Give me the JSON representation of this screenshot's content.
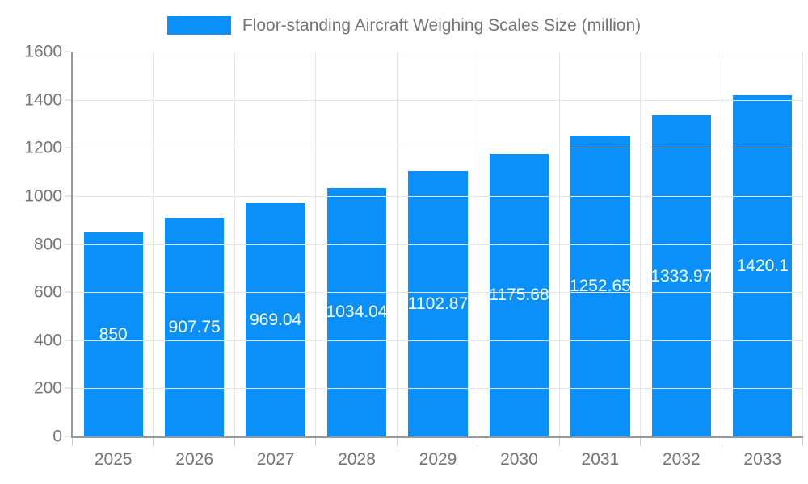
{
  "chart_data": {
    "type": "bar",
    "title": "Floor-standing Aircraft Weighing Scales Size (million)",
    "legend": [
      {
        "label": "Floor-standing Aircraft Weighing Scales Size (million)"
      }
    ],
    "legend_position": "top",
    "categories": [
      "2025",
      "2026",
      "2027",
      "2028",
      "2029",
      "2030",
      "2031",
      "2032",
      "2033"
    ],
    "series": [
      {
        "name": "Floor-standing Aircraft Weighing Scales Size (million)",
        "values": [
          850,
          907.75,
          969.04,
          1034.04,
          1102.87,
          1175.68,
          1252.65,
          1333.97,
          1420.1
        ]
      }
    ],
    "bar_labels": [
      "850",
      "907.75",
      "969.04",
      "1034.04",
      "1102.87",
      "1175.68",
      "1252.65",
      "1333.97",
      "1420.1"
    ],
    "xlabel": "",
    "ylabel": "",
    "ylim": [
      0,
      1600
    ],
    "y_ticks": [
      0,
      200,
      400,
      600,
      800,
      1000,
      1200,
      1400,
      1600
    ],
    "grid": true,
    "colors": {
      "bar": "#0a90f8",
      "bar_label": "#ffffff",
      "axis_label": "#757575",
      "legend_text": "#757575",
      "grid_line": "#e5e5e5",
      "tick_line": "#cccccc",
      "axis_line": "#999999",
      "background": "#ffffff"
    }
  }
}
